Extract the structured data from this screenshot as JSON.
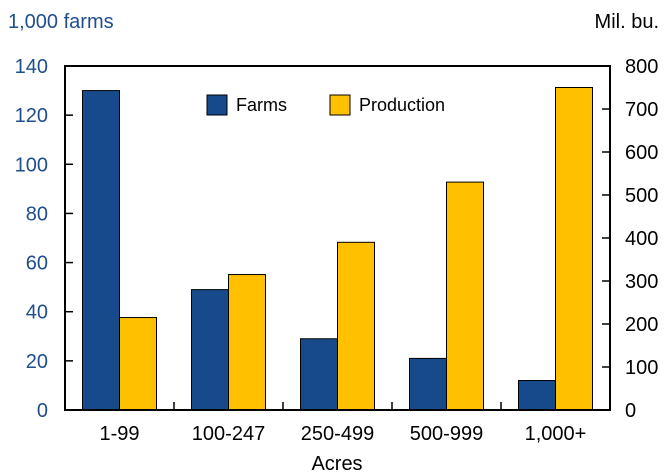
{
  "chart_data": {
    "type": "bar",
    "xlabel": "Acres",
    "left_axis_label": "1,000 farms",
    "right_axis_label": "Mil. bu.",
    "categories": [
      "1-99",
      "100-247",
      "250-499",
      "500-999",
      "1,000+"
    ],
    "series": [
      {
        "name": "Farms",
        "axis": "left",
        "color": "#174a8b",
        "values": [
          130,
          49,
          29,
          21,
          12
        ]
      },
      {
        "name": "Production",
        "axis": "right",
        "color": "#ffc000",
        "values": [
          215,
          315,
          390,
          530,
          750
        ]
      }
    ],
    "left_axis": {
      "min": 0,
      "max": 140,
      "ticks": [
        "0",
        "20",
        "40",
        "60",
        "80",
        "100",
        "120",
        "140"
      ],
      "color": "#1f4e8c"
    },
    "right_axis": {
      "min": 0,
      "max": 800,
      "ticks": [
        "0",
        "100",
        "200",
        "300",
        "400",
        "500",
        "600",
        "700",
        "800"
      ],
      "color": "#000000"
    },
    "legend_position": "top-center",
    "grid": false
  }
}
